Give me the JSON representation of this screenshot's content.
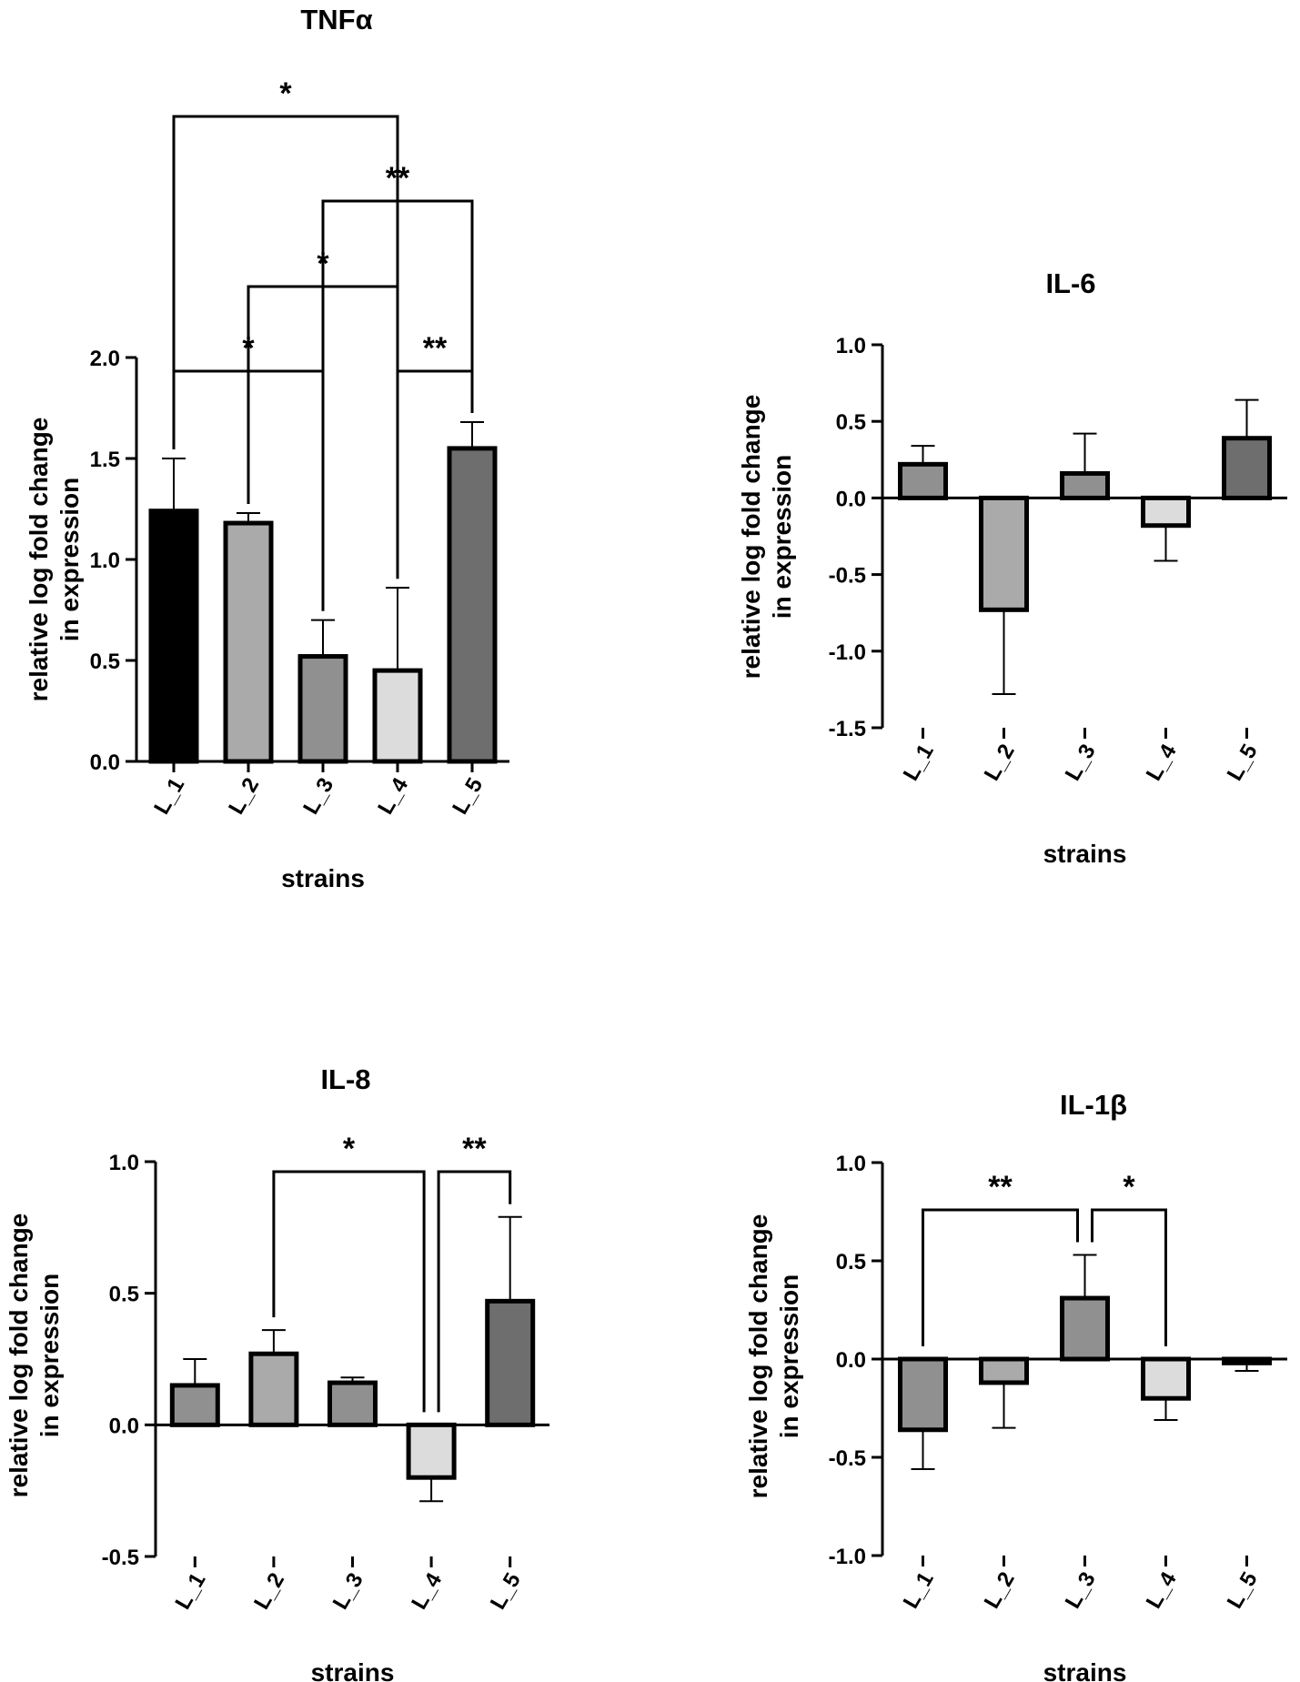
{
  "chart_data": [
    {
      "id": "tnf",
      "type": "bar",
      "title": "TNFα",
      "xlabel": "strains",
      "ylabel": [
        "relative log fold change",
        "in expression"
      ],
      "categories": [
        "L_1",
        "L_2",
        "L_3",
        "L_4",
        "L_5"
      ],
      "values": [
        1.24,
        1.18,
        0.52,
        0.45,
        1.55
      ],
      "errors": [
        0.26,
        0.05,
        0.18,
        0.41,
        0.13
      ],
      "colors": [
        "#000000",
        "#aaaaaa",
        "#909090",
        "#dcdcdc",
        "#6e6e6e"
      ],
      "ylim": [
        0,
        2
      ],
      "yticks": [
        "0.0",
        "0.5",
        "1.0",
        "1.5",
        "2.0"
      ],
      "significance": [
        {
          "from": 0,
          "to": 3,
          "label": "*"
        },
        {
          "from": 2,
          "to": 4,
          "label": "**"
        },
        {
          "from": 1,
          "to": 3,
          "label": "*"
        },
        {
          "from": 0,
          "to": 2,
          "label": "*"
        },
        {
          "from": 3,
          "to": 4,
          "label": "**"
        }
      ]
    },
    {
      "id": "il6",
      "type": "bar",
      "title": "IL-6",
      "xlabel": "strains",
      "ylabel": [
        "relative log fold change",
        "in expression"
      ],
      "categories": [
        "L_1",
        "L_2",
        "L_3",
        "L_4",
        "L_5"
      ],
      "values": [
        0.22,
        -0.73,
        0.16,
        -0.18,
        0.39
      ],
      "errors": [
        0.12,
        0.55,
        0.26,
        0.23,
        0.25
      ],
      "colors": [
        "#909090",
        "#aaaaaa",
        "#909090",
        "#dcdcdc",
        "#6e6e6e"
      ],
      "ylim": [
        -1.5,
        1
      ],
      "yticks": [
        "-1.5",
        "-1.0",
        "-0.5",
        "0.0",
        "0.5",
        "1.0"
      ],
      "significance": []
    },
    {
      "id": "il8",
      "type": "bar",
      "title": "IL-8",
      "xlabel": "strains",
      "ylabel": [
        "relative log fold change",
        "in expression"
      ],
      "categories": [
        "L_1",
        "L_2",
        "L_3",
        "L_4",
        "L_5"
      ],
      "values": [
        0.15,
        0.27,
        0.16,
        -0.2,
        0.47
      ],
      "errors": [
        0.1,
        0.09,
        0.02,
        0.09,
        0.32
      ],
      "colors": [
        "#909090",
        "#aaaaaa",
        "#909090",
        "#dcdcdc",
        "#6e6e6e"
      ],
      "ylim": [
        -0.5,
        1
      ],
      "yticks": [
        "-0.5",
        "0.0",
        "0.5",
        "1.0"
      ],
      "significance": [
        {
          "from": 1,
          "to": 3,
          "label": "*"
        },
        {
          "from": 3,
          "to": 4,
          "label": "**"
        }
      ]
    },
    {
      "id": "il1b",
      "type": "bar",
      "title": "IL-1β",
      "xlabel": "strains",
      "ylabel": [
        "relative log fold change",
        "in expression"
      ],
      "categories": [
        "L_1",
        "L_2",
        "L_3",
        "L_4",
        "L_5"
      ],
      "values": [
        -0.36,
        -0.12,
        0.31,
        -0.2,
        -0.02
      ],
      "errors": [
        0.2,
        0.23,
        0.22,
        0.11,
        0.04
      ],
      "colors": [
        "#909090",
        "#aaaaaa",
        "#909090",
        "#dcdcdc",
        "#6e6e6e"
      ],
      "ylim": [
        -1,
        1
      ],
      "yticks": [
        "-1.0",
        "-0.5",
        "0.0",
        "0.5",
        "1.0"
      ],
      "significance": [
        {
          "from": 0,
          "to": 2,
          "label": "**"
        },
        {
          "from": 2,
          "to": 3,
          "label": "*"
        }
      ]
    }
  ]
}
